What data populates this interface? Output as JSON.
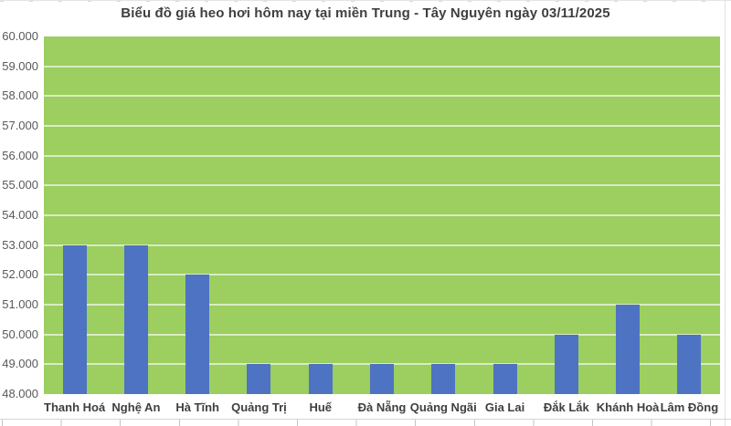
{
  "title": "Biểu đồ giá heo hơi hôm nay tại miền Trung - Tây Nguyên ngày 03/11/2025",
  "colors": {
    "bar": "#4e73c2",
    "plot_background": "#9cce60",
    "gridline": "rgba(255,255,255,0.62)",
    "title_text": "#3f3f3f",
    "axis_text": "#595959",
    "category_text": "#3f3f3f",
    "page_background": "#ffffff",
    "border": "#d9d9d9"
  },
  "chart_data": {
    "type": "bar",
    "title": "Biểu đồ giá heo hơi hôm nay tại miền Trung - Tây Nguyên ngày 03/11/2025",
    "categories": [
      "Thanh Hoá",
      "Nghệ An",
      "Hà Tĩnh",
      "Quảng Trị",
      "Huế",
      "Đà Nẵng",
      "Quảng Ngãi",
      "Gia Lai",
      "Đắk Lắk",
      "Khánh Hoà",
      "Lâm Đồng"
    ],
    "values": [
      53000,
      53000,
      52000,
      49000,
      49000,
      49000,
      49000,
      49000,
      50000,
      51000,
      50000
    ],
    "xlabel": "",
    "ylabel": "",
    "ylim": [
      48000,
      60000
    ],
    "ytick_step": 1000,
    "ytick_labels": [
      "48.000",
      "49.000",
      "50.000",
      "51.000",
      "52.000",
      "53.000",
      "54.000",
      "55.000",
      "56.000",
      "57.000",
      "58.000",
      "59.000",
      "60.000"
    ],
    "grid": true,
    "legend": false,
    "bar_color": "#4e73c2",
    "plot_background": "#9cce60"
  }
}
